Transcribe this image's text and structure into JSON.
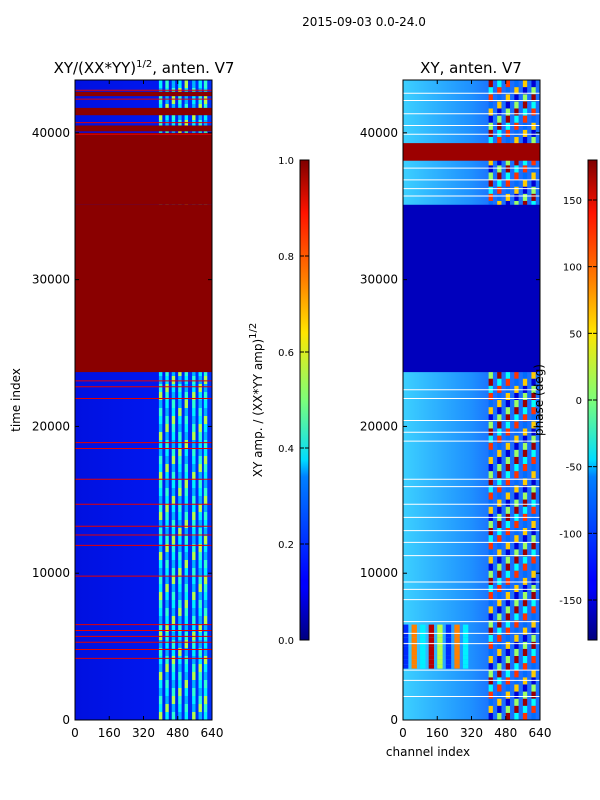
{
  "figure": {
    "suptitle": "2015-09-03 0.0-24.0",
    "xlabel": "channel index"
  },
  "chart_data": [
    {
      "type": "heatmap",
      "title_main": "XY/(XX*YY)",
      "title_sup": "1/2",
      "title_rest": ", anten. V7",
      "xlabel": "",
      "ylabel": "time index",
      "xlim": [
        0,
        640
      ],
      "ylim": [
        0,
        43600
      ],
      "x_ticks": [
        "0",
        "160",
        "320",
        "480",
        "640"
      ],
      "y_ticks": [
        "0",
        "10000",
        "20000",
        "30000",
        "40000"
      ],
      "colorbar": {
        "label_main": "XY amp. / (XX*YY amp)",
        "label_sup": "1/2",
        "range": [
          0.0,
          1.0
        ],
        "ticks": [
          "0.0",
          "0.2",
          "0.4",
          "0.6",
          "0.8",
          "1.0"
        ],
        "colormap": "jet"
      },
      "base_value": 0.12,
      "bands": [
        {
          "t0": 35100,
          "t1": 40000,
          "value": 1.0
        },
        {
          "t0": 23700,
          "t1": 35100,
          "value": 1.0
        },
        {
          "t0": 37600,
          "t1": 38100,
          "value": 1.0
        },
        {
          "t0": 38300,
          "t1": 39700,
          "value": 1.0
        },
        {
          "t0": 40100,
          "t1": 40500,
          "value": 1.0
        },
        {
          "t0": 41200,
          "t1": 41700,
          "value": 1.0
        },
        {
          "t0": 42500,
          "t1": 42800,
          "value": 1.0
        },
        {
          "t0": 36100,
          "t1": 36400,
          "value": 1.0
        }
      ],
      "red_lines": [
        42900,
        42300,
        40700,
        39900,
        23100,
        22700,
        21900,
        18900,
        18500,
        16400,
        14700,
        13200,
        12600,
        11900,
        9800,
        6500,
        6100,
        5700,
        5300,
        4800,
        4200
      ],
      "bright_column_band": {
        "c0": 380,
        "c1": 640,
        "value_low": 0.3,
        "value_high": 0.55
      },
      "stripe_columns": [
        400,
        430,
        460,
        490,
        520,
        555,
        585,
        610
      ]
    },
    {
      "type": "heatmap",
      "title_main": "XY, anten. V7",
      "xlabel": "channel index",
      "ylabel": "",
      "xlim": [
        0,
        640
      ],
      "ylim": [
        0,
        43600
      ],
      "x_ticks": [
        "0",
        "160",
        "320",
        "480",
        "640"
      ],
      "y_ticks": [
        "0",
        "10000",
        "20000",
        "30000",
        "40000"
      ],
      "colorbar": {
        "label_main": "phase (deg)",
        "range": [
          -180,
          180
        ],
        "ticks": [
          "-150",
          "-100",
          "-50",
          "0",
          "50",
          "100",
          "150"
        ],
        "colormap": "jet"
      },
      "dark_band": {
        "t0": 23700,
        "t1": 35100,
        "value": -180
      },
      "red_band": {
        "t0": 38100,
        "t1": 39300,
        "value": 170
      },
      "white_lines": [
        42700,
        42200,
        41300,
        40500,
        39900,
        37600,
        36800,
        36200,
        35700,
        22500,
        21900,
        20400,
        19600,
        19000,
        16400,
        15900,
        14700,
        13800,
        12900,
        12100,
        11200,
        9400,
        8900,
        8200,
        6700,
        5900,
        5200,
        3400,
        2700,
        1600
      ]
    }
  ]
}
